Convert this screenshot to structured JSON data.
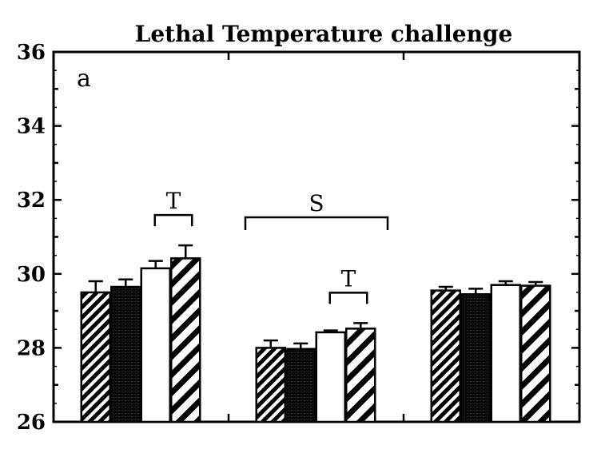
{
  "chart_data": {
    "type": "bar",
    "title": "Lethal Temperature challenge",
    "panel_label": "a",
    "xlabel": "",
    "ylabel": "",
    "ylim": [
      26,
      36
    ],
    "yticks": [
      "26",
      "28",
      "30",
      "32",
      "34",
      "36"
    ],
    "groups": 3,
    "bar_patterns": [
      "diagonal-hatch",
      "solid-dark",
      "open-white",
      "wide-diagonal-stripes"
    ],
    "series": [
      {
        "group": 1,
        "values": [
          29.5,
          29.65,
          30.15,
          30.42
        ],
        "errors": [
          0.3,
          0.2,
          0.2,
          0.35
        ]
      },
      {
        "group": 2,
        "values": [
          28.0,
          27.97,
          28.42,
          28.52
        ],
        "errors": [
          0.2,
          0.15,
          0.05,
          0.15
        ]
      },
      {
        "group": 3,
        "values": [
          29.55,
          29.45,
          29.7,
          29.68
        ],
        "errors": [
          0.1,
          0.15,
          0.1,
          0.1
        ]
      }
    ],
    "annotations": [
      {
        "text": "T",
        "group": 1,
        "from_bar": 3,
        "to_bar": 4
      },
      {
        "text": "S",
        "group": 2,
        "from_bar": 1,
        "to_bar": 4,
        "wide": true
      },
      {
        "text": "T",
        "group": 2,
        "from_bar": 3,
        "to_bar": 4
      }
    ],
    "grid": false,
    "legend": "none"
  }
}
